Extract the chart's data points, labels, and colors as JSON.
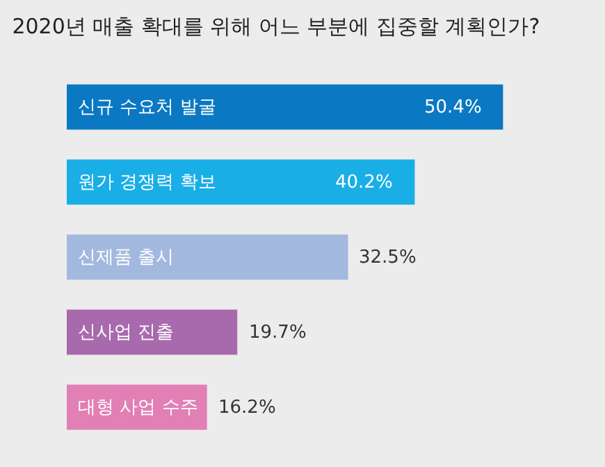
{
  "chart_data": {
    "type": "bar",
    "orientation": "horizontal",
    "title": "2020년 매출 확대를 위해 어느 부분에 집중할 계획인가?",
    "categories": [
      "신규 수요처 발굴",
      "원가 경쟁력 확보",
      "신제품 출시",
      "신사업 진출",
      "대형 사업 수주"
    ],
    "values": [
      50.4,
      40.2,
      32.5,
      19.7,
      16.2
    ],
    "colors": [
      "#0a78c2",
      "#1aaee6",
      "#a3b8de",
      "#a96aad",
      "#e27fb5"
    ],
    "value_labels": [
      "50.4%",
      "40.2%",
      "32.5%",
      "19.7%",
      "16.2%"
    ]
  }
}
